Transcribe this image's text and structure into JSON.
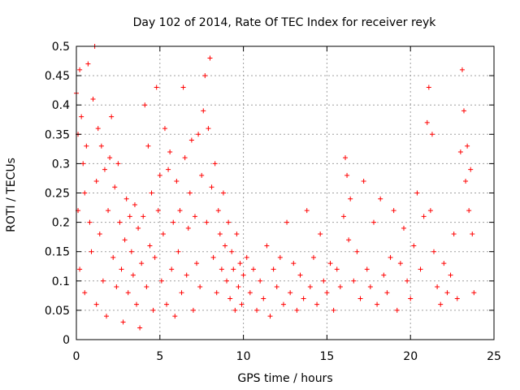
{
  "chart_data": {
    "type": "scatter",
    "title": "Day 102 of 2014, Rate Of TEC Index for receiver reyk",
    "xlabel": "GPS time / hours",
    "ylabel": "ROTI / TECUs",
    "xlim": [
      0,
      25
    ],
    "ylim": [
      0,
      0.5
    ],
    "x_ticks": [
      "0",
      "5",
      "10",
      "15",
      "20",
      "25"
    ],
    "y_ticks": [
      "0",
      "0.05",
      "0.1",
      "0.15",
      "0.2",
      "0.25",
      "0.3",
      "0.35",
      "0.4",
      "0.45",
      "0.5"
    ],
    "grid": true,
    "marker": "+",
    "color": "#ff0000",
    "series": [
      {
        "x": [
          0.0,
          0.1,
          0.1,
          0.2,
          0.2,
          0.3,
          0.4,
          0.5,
          0.5,
          0.6,
          0.7,
          0.8,
          0.9,
          1.0,
          1.1,
          1.2,
          1.2,
          1.3,
          1.4,
          1.5,
          1.6,
          1.7,
          1.8,
          1.9,
          2.0,
          2.1,
          2.2,
          2.3,
          2.4,
          2.5,
          2.6,
          2.7,
          2.8,
          2.9,
          3.0,
          3.1,
          3.2,
          3.3,
          3.4,
          3.5,
          3.6,
          3.7,
          3.8,
          3.9,
          4.0,
          4.1,
          4.2,
          4.3,
          4.4,
          4.5,
          4.6,
          4.7,
          4.8,
          4.9,
          5.0,
          5.1,
          5.2,
          5.3,
          5.4,
          5.5,
          5.6,
          5.7,
          5.8,
          5.9,
          6.0,
          6.1,
          6.2,
          6.3,
          6.4,
          6.5,
          6.6,
          6.7,
          6.8,
          6.9,
          7.0,
          7.1,
          7.2,
          7.3,
          7.4,
          7.5,
          7.6,
          7.7,
          7.8,
          7.9,
          8.0,
          8.1,
          8.2,
          8.3,
          8.4,
          8.5,
          8.6,
          8.7,
          8.8,
          8.9,
          9.0,
          9.1,
          9.2,
          9.3,
          9.4,
          9.5,
          9.6,
          9.7,
          9.8,
          9.9,
          10.0,
          10.2,
          10.4,
          10.6,
          10.8,
          11.0,
          11.2,
          11.4,
          11.6,
          11.8,
          12.0,
          12.2,
          12.4,
          12.6,
          12.8,
          13.0,
          13.2,
          13.4,
          13.6,
          13.8,
          14.0,
          14.2,
          14.4,
          14.6,
          14.8,
          15.0,
          15.2,
          15.4,
          15.6,
          15.8,
          16.0,
          16.1,
          16.2,
          16.3,
          16.4,
          16.6,
          16.8,
          17.0,
          17.2,
          17.4,
          17.6,
          17.8,
          18.0,
          18.2,
          18.4,
          18.6,
          18.8,
          19.0,
          19.2,
          19.4,
          19.6,
          19.8,
          20.0,
          20.2,
          20.4,
          20.6,
          20.8,
          21.0,
          21.1,
          21.2,
          21.3,
          21.4,
          21.6,
          21.8,
          22.0,
          22.2,
          22.4,
          22.6,
          22.8,
          23.0,
          23.1,
          23.2,
          23.3,
          23.4,
          23.5,
          23.6,
          23.7,
          23.8
        ],
        "y": [
          0.42,
          0.35,
          0.22,
          0.46,
          0.12,
          0.38,
          0.3,
          0.25,
          0.08,
          0.33,
          0.47,
          0.2,
          0.15,
          0.41,
          0.5,
          0.06,
          0.27,
          0.36,
          0.18,
          0.33,
          0.1,
          0.29,
          0.04,
          0.22,
          0.31,
          0.38,
          0.14,
          0.26,
          0.09,
          0.3,
          0.2,
          0.12,
          0.03,
          0.17,
          0.24,
          0.08,
          0.21,
          0.15,
          0.11,
          0.23,
          0.06,
          0.19,
          0.02,
          0.13,
          0.21,
          0.4,
          0.09,
          0.33,
          0.16,
          0.25,
          0.05,
          0.14,
          0.43,
          0.22,
          0.28,
          0.1,
          0.18,
          0.36,
          0.06,
          0.29,
          0.32,
          0.12,
          0.2,
          0.04,
          0.27,
          0.15,
          0.22,
          0.08,
          0.43,
          0.31,
          0.11,
          0.19,
          0.25,
          0.34,
          0.05,
          0.21,
          0.13,
          0.35,
          0.09,
          0.28,
          0.39,
          0.45,
          0.2,
          0.36,
          0.48,
          0.26,
          0.14,
          0.3,
          0.08,
          0.22,
          0.18,
          0.12,
          0.25,
          0.16,
          0.1,
          0.2,
          0.07,
          0.15,
          0.12,
          0.05,
          0.18,
          0.09,
          0.13,
          0.06,
          0.11,
          0.14,
          0.08,
          0.12,
          0.05,
          0.1,
          0.07,
          0.16,
          0.04,
          0.12,
          0.09,
          0.14,
          0.06,
          0.2,
          0.08,
          0.13,
          0.05,
          0.11,
          0.07,
          0.22,
          0.09,
          0.14,
          0.06,
          0.18,
          0.1,
          0.08,
          0.13,
          0.05,
          0.12,
          0.09,
          0.21,
          0.31,
          0.28,
          0.17,
          0.24,
          0.1,
          0.15,
          0.07,
          0.27,
          0.12,
          0.09,
          0.2,
          0.06,
          0.24,
          0.11,
          0.08,
          0.14,
          0.22,
          0.05,
          0.13,
          0.19,
          0.1,
          0.07,
          0.16,
          0.25,
          0.12,
          0.21,
          0.37,
          0.43,
          0.22,
          0.35,
          0.15,
          0.09,
          0.06,
          0.13,
          0.08,
          0.11,
          0.18,
          0.07,
          0.32,
          0.46,
          0.39,
          0.27,
          0.33,
          0.22,
          0.29,
          0.18,
          0.08
        ]
      }
    ]
  }
}
